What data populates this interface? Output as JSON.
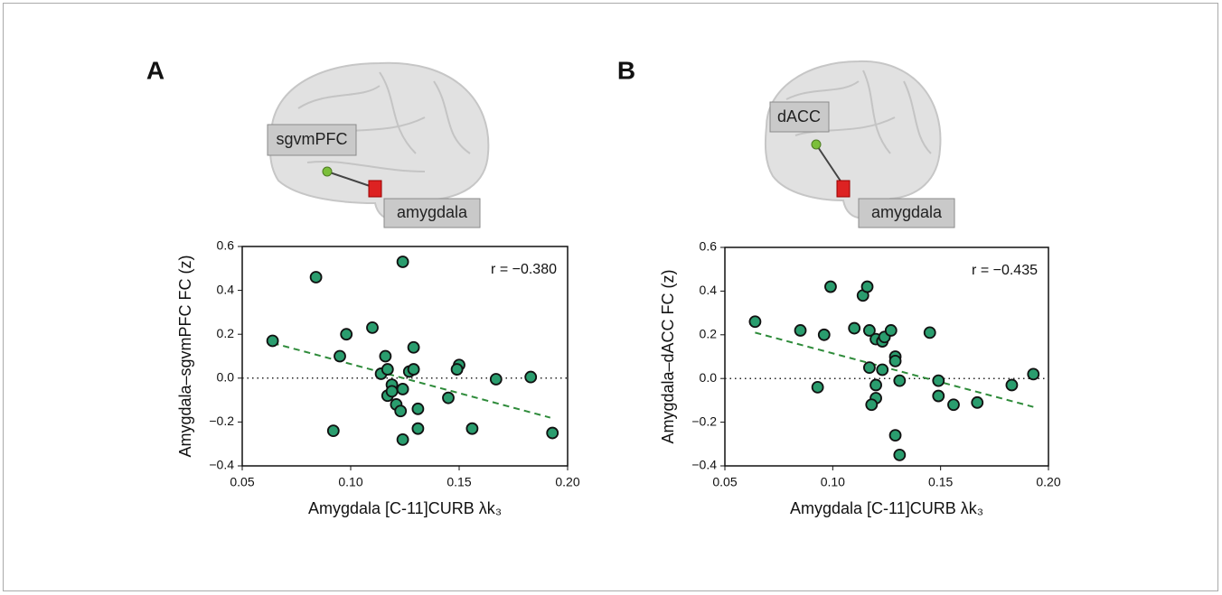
{
  "chart_data": [
    {
      "type": "scatter",
      "panel_label": "A",
      "region_labels": [
        "sgvmPFC",
        "amygdala"
      ],
      "x_label": "Amygdala [C-11]CURB λk₃",
      "y_label": "Amygdala–sgvmPFC FC (z)",
      "annotation": "r = −0.380",
      "color": "#2a9d6e",
      "trend_color": "#2e8b3a",
      "xlim": [
        0.05,
        0.2
      ],
      "xticks": [
        0.05,
        {
          "value": 0.1,
          "label": "0.10"
        },
        0.15,
        {
          "value": 0.2,
          "label": "0.20"
        }
      ],
      "ylim": [
        -0.4,
        0.6
      ],
      "yticks": [
        {
          "value": -0.4,
          "label": "−0.4"
        },
        {
          "value": -0.2,
          "label": "−0.2"
        },
        {
          "value": 0,
          "label": "0.0"
        },
        0.2,
        0.4,
        0.6
      ],
      "hline": 0,
      "trendline": {
        "x": [
          0.064,
          0.192
        ],
        "y": [
          0.16,
          -0.18
        ]
      },
      "x": [
        0.064,
        0.084,
        0.095,
        0.098,
        0.092,
        0.11,
        0.124,
        0.116,
        0.114,
        0.117,
        0.119,
        0.117,
        0.119,
        0.121,
        0.123,
        0.124,
        0.124,
        0.127,
        0.129,
        0.129,
        0.131,
        0.131,
        0.145,
        0.15,
        0.149,
        0.156,
        0.167,
        0.183,
        0.193
      ],
      "values": [
        0.17,
        0.46,
        0.1,
        0.2,
        -0.24,
        0.23,
        0.53,
        0.1,
        0.02,
        0.04,
        -0.03,
        -0.08,
        -0.06,
        -0.12,
        -0.15,
        -0.05,
        -0.28,
        0.03,
        0.04,
        0.14,
        -0.14,
        -0.23,
        -0.09,
        0.06,
        0.04,
        -0.23,
        -0.005,
        0.005,
        -0.25
      ]
    },
    {
      "type": "scatter",
      "panel_label": "B",
      "region_labels": [
        "dACC",
        "amygdala"
      ],
      "x_label": "Amygdala [C-11]CURB λk₃",
      "y_label": "Amygdala–dACC FC (z)",
      "annotation": "r = −0.435",
      "color": "#2a9d6e",
      "trend_color": "#2e8b3a",
      "xlim": [
        0.05,
        0.2
      ],
      "xticks": [
        0.05,
        {
          "value": 0.1,
          "label": "0.10"
        },
        0.15,
        {
          "value": 0.2,
          "label": "0.20"
        }
      ],
      "ylim": [
        -0.4,
        0.6
      ],
      "yticks": [
        {
          "value": -0.4,
          "label": "−0.4"
        },
        {
          "value": -0.2,
          "label": "−0.2"
        },
        {
          "value": 0,
          "label": "0.0"
        },
        0.2,
        0.4,
        0.6
      ],
      "hline": 0,
      "trendline": {
        "x": [
          0.064,
          0.193
        ],
        "y": [
          0.21,
          -0.13
        ]
      },
      "x": [
        0.064,
        0.085,
        0.096,
        0.093,
        0.099,
        0.11,
        0.114,
        0.116,
        0.117,
        0.12,
        0.123,
        0.124,
        0.127,
        0.129,
        0.129,
        0.117,
        0.12,
        0.123,
        0.12,
        0.118,
        0.129,
        0.131,
        0.131,
        0.145,
        0.149,
        0.149,
        0.156,
        0.167,
        0.183,
        0.193
      ],
      "values": [
        0.26,
        0.22,
        0.2,
        -0.04,
        0.42,
        0.23,
        0.38,
        0.42,
        0.22,
        0.18,
        0.17,
        0.19,
        0.22,
        0.1,
        0.08,
        0.05,
        -0.03,
        0.04,
        -0.09,
        -0.12,
        -0.26,
        -0.35,
        -0.01,
        0.21,
        -0.01,
        -0.08,
        -0.12,
        -0.11,
        -0.03,
        0.02
      ]
    }
  ]
}
